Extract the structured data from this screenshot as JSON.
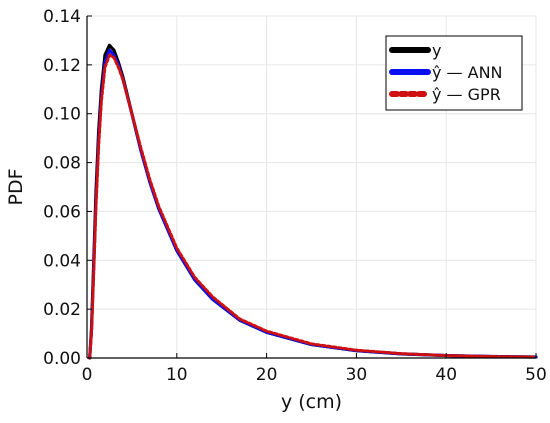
{
  "chart_data": {
    "type": "line",
    "title": "",
    "xlabel": "y (cm)",
    "ylabel": "PDF",
    "xlim": [
      0,
      50
    ],
    "ylim": [
      0,
      0.14
    ],
    "xticks": [
      0,
      10,
      20,
      30,
      40,
      50
    ],
    "xtick_labels": [
      "0",
      "10",
      "20",
      "30",
      "40",
      "50"
    ],
    "yticks": [
      0,
      0.02,
      0.04,
      0.06,
      0.08,
      0.1,
      0.12,
      0.14
    ],
    "ytick_labels": [
      "0.00",
      "0.02",
      "0.04",
      "0.06",
      "0.08",
      "0.10",
      "0.12",
      "0.14"
    ],
    "grid": true,
    "legend_position": "top-right",
    "series": [
      {
        "name": "y",
        "color": "#000000",
        "style": "solid",
        "x": [
          0.3,
          0.5,
          0.8,
          1.0,
          1.3,
          1.6,
          2.0,
          2.5,
          3.0,
          3.5,
          4.0,
          5.0,
          6.0,
          7.0,
          8.0,
          10.0,
          12.0,
          14.0,
          17.0,
          20.0,
          25.0,
          30.0,
          35.0,
          40.0,
          45.0,
          50.0
        ],
        "y": [
          0.0,
          0.012,
          0.045,
          0.068,
          0.093,
          0.11,
          0.124,
          0.128,
          0.126,
          0.121,
          0.115,
          0.1,
          0.085,
          0.072,
          0.061,
          0.044,
          0.032,
          0.024,
          0.0155,
          0.0105,
          0.0055,
          0.003,
          0.0017,
          0.001,
          0.0006,
          0.0004
        ]
      },
      {
        "name": "ŷ — ANN",
        "color": "#0a0ff0",
        "style": "solid",
        "x": [
          0.3,
          0.5,
          0.8,
          1.0,
          1.3,
          1.6,
          2.0,
          2.5,
          3.0,
          3.5,
          4.0,
          5.0,
          6.0,
          7.0,
          8.0,
          10.0,
          12.0,
          14.0,
          17.0,
          20.0,
          25.0,
          30.0,
          35.0,
          40.0,
          45.0,
          50.0
        ],
        "y": [
          0.0,
          0.011,
          0.042,
          0.064,
          0.089,
          0.107,
          0.121,
          0.126,
          0.124,
          0.12,
          0.114,
          0.1,
          0.085,
          0.072,
          0.061,
          0.044,
          0.032,
          0.024,
          0.0155,
          0.0105,
          0.0055,
          0.003,
          0.0017,
          0.001,
          0.0006,
          0.0004
        ]
      },
      {
        "name": "ŷ — GPR",
        "color": "#d01010",
        "style": "dotted",
        "x": [
          0.3,
          0.5,
          0.8,
          1.0,
          1.3,
          1.6,
          2.0,
          2.5,
          3.0,
          3.5,
          4.0,
          5.0,
          6.0,
          7.0,
          8.0,
          10.0,
          12.0,
          14.0,
          17.0,
          20.0,
          25.0,
          30.0,
          35.0,
          40.0,
          45.0,
          50.0
        ],
        "y": [
          0.0,
          0.01,
          0.04,
          0.062,
          0.087,
          0.105,
          0.119,
          0.124,
          0.123,
          0.119,
          0.114,
          0.1,
          0.086,
          0.073,
          0.062,
          0.045,
          0.033,
          0.025,
          0.016,
          0.011,
          0.0058,
          0.0032,
          0.0018,
          0.001,
          0.0006,
          0.0004
        ]
      }
    ]
  }
}
